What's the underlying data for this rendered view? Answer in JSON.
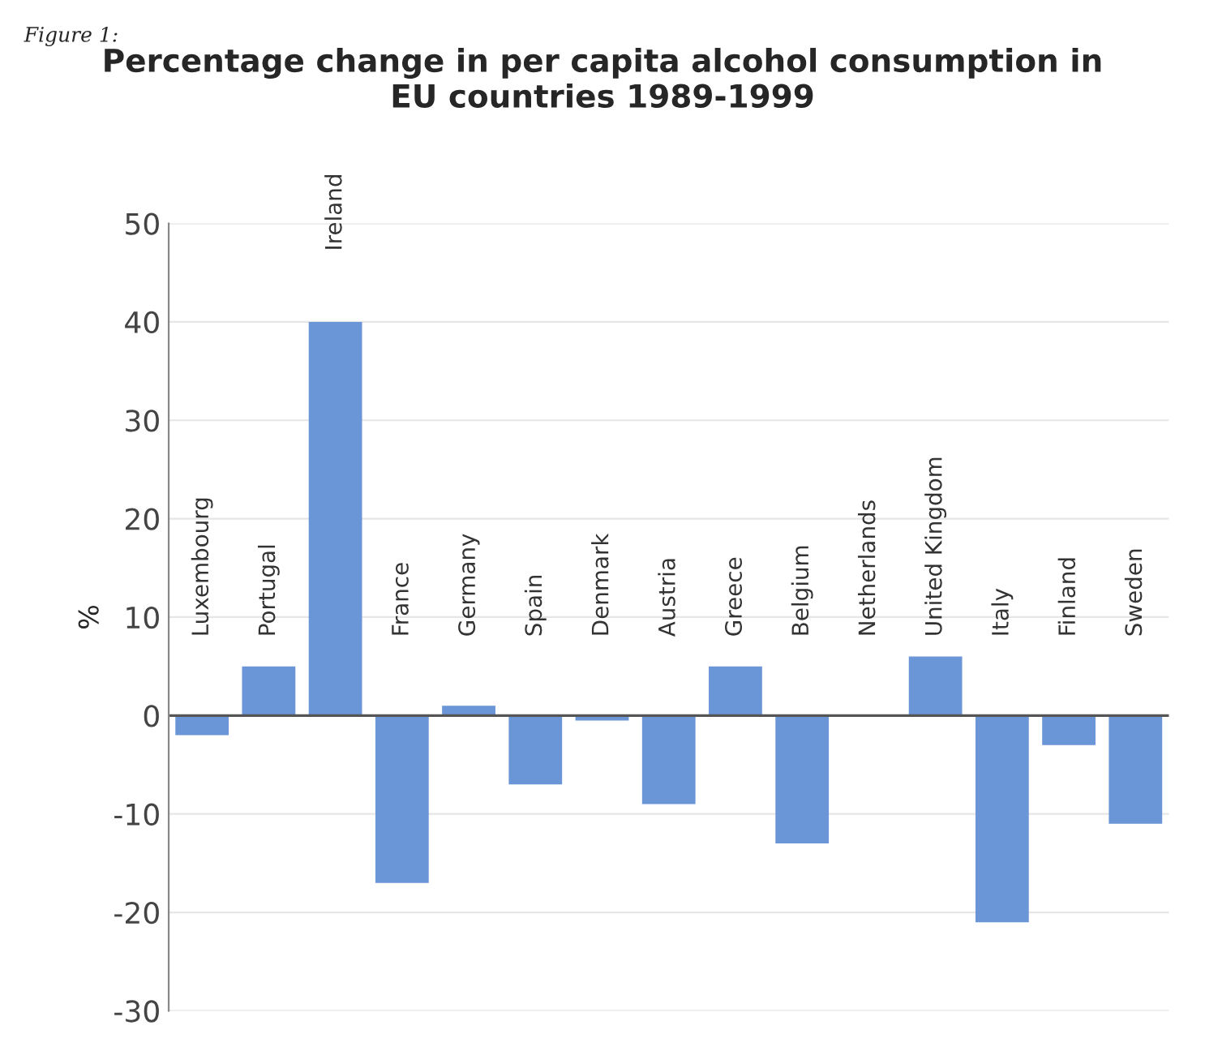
{
  "chart_data": {
    "type": "bar",
    "title": "Percentage change in per capita alcohol consumption in\nEU countries 1989-1999",
    "ylabel": "%",
    "categories": [
      "Luxembourg",
      "Portugal",
      "Ireland",
      "France",
      "Germany",
      "Spain",
      "Denmark",
      "Austria",
      "Greece",
      "Belgium",
      "Netherlands",
      "United Kingdom",
      "Italy",
      "Finland",
      "Sweden"
    ],
    "values": [
      -2,
      5,
      40,
      -17,
      1,
      -7,
      -0.5,
      -9,
      5,
      -13,
      0,
      6,
      -21,
      -3,
      -11
    ],
    "color": "#6a95d6",
    "ylim": [
      -30,
      50
    ],
    "yticks": [
      -30,
      -20,
      -10,
      0,
      10,
      20,
      30,
      40,
      50
    ],
    "grid": "y",
    "annotations": [
      "Figure 1:"
    ]
  }
}
